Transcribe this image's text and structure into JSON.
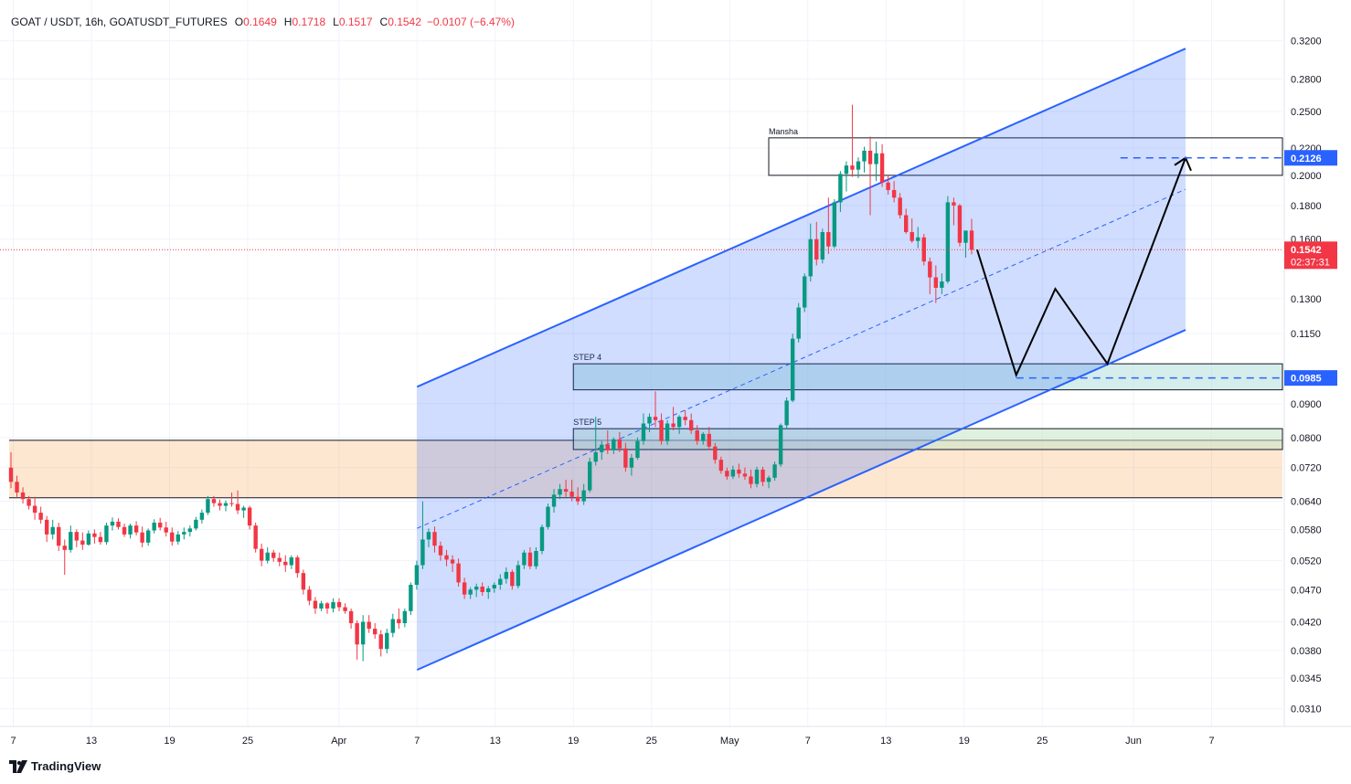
{
  "header": {
    "symbol": "GOAT / USDT, 16h, GOATUSDT_FUTURES",
    "open_label": "O",
    "open": "0.1649",
    "high_label": "H",
    "high": "0.1718",
    "low_label": "L",
    "low": "0.1517",
    "close_label": "C",
    "close": "0.1542",
    "change": "−0.0107 (−6.47%)"
  },
  "brand": {
    "name": "TradingView"
  },
  "colors": {
    "up": "#089981",
    "down": "#f23645",
    "channel": "#2962ff",
    "channel_fill": "#2962ff",
    "demand_zone": "#f57c00",
    "label_blue": "#2962ff"
  },
  "chart_data": {
    "type": "candlestick",
    "y_axis": {
      "scale": "log",
      "ticks": [
        "0.3200",
        "0.2800",
        "0.2500",
        "0.2200",
        "0.2000",
        "0.1800",
        "0.1600",
        "0.1300",
        "0.1150",
        "0.0900",
        "0.0800",
        "0.0720",
        "0.0640",
        "0.0580",
        "0.0520",
        "0.0470",
        "0.0420",
        "0.0380",
        "0.0345",
        "0.0310"
      ]
    },
    "x_axis": {
      "ticks": [
        "7",
        "13",
        "19",
        "25",
        "Apr",
        "7",
        "13",
        "19",
        "25",
        "May",
        "7",
        "13",
        "19",
        "25",
        "Jun",
        "7"
      ]
    },
    "price_labels": [
      {
        "value": "0.2126",
        "kind": "target"
      },
      {
        "value": "0.1542",
        "kind": "last",
        "countdown": "02:37:31"
      },
      {
        "value": "0.0985",
        "kind": "entry"
      }
    ],
    "zones": [
      {
        "name": "Mansha",
        "top": 0.228,
        "bottom": 0.2
      },
      {
        "name": "STEP 4",
        "top": 0.1035,
        "bottom": 0.0945
      },
      {
        "name": "STEP 5",
        "top": 0.0825,
        "bottom": 0.0767
      },
      {
        "name": "",
        "top": 0.0792,
        "bottom": 0.0648
      }
    ],
    "channel": {
      "lower": [
        {
          "date": "Apr 7",
          "value": 0.0355
        },
        {
          "date": "Jun 5",
          "value": 0.1165
        }
      ],
      "upper": [
        {
          "date": "Apr 7",
          "value": 0.0955
        },
        {
          "date": "Jun 5",
          "value": 0.3115
        }
      ]
    },
    "projection": [
      {
        "date": "May 20",
        "value": 0.1542
      },
      {
        "date": "May 23",
        "value": 0.0995
      },
      {
        "date": "May 26",
        "value": 0.1345
      },
      {
        "date": "May 30",
        "value": 0.1035
      },
      {
        "date": "Jun 5",
        "value": 0.2126
      }
    ],
    "candles": [
      [
        0.072,
        0.076,
        0.067,
        0.0685
      ],
      [
        0.0685,
        0.07,
        0.065,
        0.066
      ],
      [
        0.066,
        0.0672,
        0.0635,
        0.0645
      ],
      [
        0.0645,
        0.0652,
        0.0622,
        0.063
      ],
      [
        0.063,
        0.065,
        0.06,
        0.0615
      ],
      [
        0.0615,
        0.0628,
        0.0592,
        0.06
      ],
      [
        0.06,
        0.0608,
        0.0555,
        0.057
      ],
      [
        0.057,
        0.06,
        0.056,
        0.0585
      ],
      [
        0.0585,
        0.0594,
        0.0538,
        0.0548
      ],
      [
        0.0548,
        0.056,
        0.0495,
        0.054
      ],
      [
        0.054,
        0.0588,
        0.0535,
        0.0575
      ],
      [
        0.0575,
        0.058,
        0.0545,
        0.0558
      ],
      [
        0.0558,
        0.0574,
        0.054,
        0.055
      ],
      [
        0.055,
        0.0578,
        0.0548,
        0.0572
      ],
      [
        0.0572,
        0.058,
        0.0552,
        0.0565
      ],
      [
        0.0565,
        0.0575,
        0.055,
        0.0555
      ],
      [
        0.0555,
        0.0594,
        0.055,
        0.0588
      ],
      [
        0.0588,
        0.0605,
        0.0578,
        0.0596
      ],
      [
        0.0596,
        0.0603,
        0.058,
        0.0585
      ],
      [
        0.0585,
        0.0592,
        0.0565,
        0.057
      ],
      [
        0.057,
        0.0592,
        0.0562,
        0.0588
      ],
      [
        0.0588,
        0.0597,
        0.0568,
        0.0574
      ],
      [
        0.0574,
        0.0586,
        0.0545,
        0.0554
      ],
      [
        0.0554,
        0.0582,
        0.0548,
        0.0578
      ],
      [
        0.0578,
        0.0601,
        0.0572,
        0.0594
      ],
      [
        0.0594,
        0.0604,
        0.0578,
        0.0584
      ],
      [
        0.0584,
        0.0596,
        0.0566,
        0.0574
      ],
      [
        0.0574,
        0.0584,
        0.0548,
        0.0556
      ],
      [
        0.0556,
        0.0577,
        0.055,
        0.057
      ],
      [
        0.057,
        0.0584,
        0.056,
        0.0575
      ],
      [
        0.0575,
        0.0588,
        0.0566,
        0.0582
      ],
      [
        0.0582,
        0.0606,
        0.0578,
        0.06
      ],
      [
        0.06,
        0.0622,
        0.0592,
        0.0615
      ],
      [
        0.0615,
        0.0652,
        0.061,
        0.0645
      ],
      [
        0.0645,
        0.0652,
        0.0628,
        0.0636
      ],
      [
        0.0636,
        0.0644,
        0.062,
        0.063
      ],
      [
        0.063,
        0.0642,
        0.0618,
        0.0636
      ],
      [
        0.0636,
        0.066,
        0.0628,
        0.0634
      ],
      [
        0.0634,
        0.0665,
        0.0612,
        0.062
      ],
      [
        0.062,
        0.063,
        0.0604,
        0.0626
      ],
      [
        0.0626,
        0.063,
        0.058,
        0.0588
      ],
      [
        0.0588,
        0.0594,
        0.0535,
        0.0542
      ],
      [
        0.0542,
        0.0552,
        0.051,
        0.052
      ],
      [
        0.052,
        0.0545,
        0.0515,
        0.0535
      ],
      [
        0.0535,
        0.054,
        0.0518,
        0.0525
      ],
      [
        0.0525,
        0.0535,
        0.051,
        0.0518
      ],
      [
        0.0518,
        0.053,
        0.05,
        0.0512
      ],
      [
        0.0512,
        0.053,
        0.0505,
        0.0526
      ],
      [
        0.0526,
        0.053,
        0.049,
        0.0498
      ],
      [
        0.0498,
        0.0504,
        0.0462,
        0.047
      ],
      [
        0.047,
        0.0476,
        0.0445,
        0.0452
      ],
      [
        0.0452,
        0.0458,
        0.0432,
        0.044
      ],
      [
        0.044,
        0.0452,
        0.0436,
        0.0448
      ],
      [
        0.0448,
        0.045,
        0.0432,
        0.044
      ],
      [
        0.044,
        0.0456,
        0.0434,
        0.045
      ],
      [
        0.045,
        0.0456,
        0.0436,
        0.0442
      ],
      [
        0.0442,
        0.0448,
        0.0432,
        0.0436
      ],
      [
        0.0436,
        0.044,
        0.041,
        0.0418
      ],
      [
        0.0418,
        0.0422,
        0.0368,
        0.0388
      ],
      [
        0.0388,
        0.043,
        0.0366,
        0.042
      ],
      [
        0.042,
        0.043,
        0.0404,
        0.041
      ],
      [
        0.041,
        0.0418,
        0.0396,
        0.0402
      ],
      [
        0.0402,
        0.0408,
        0.0372,
        0.0382
      ],
      [
        0.0382,
        0.041,
        0.0376,
        0.0404
      ],
      [
        0.0404,
        0.0432,
        0.0398,
        0.0424
      ],
      [
        0.0424,
        0.044,
        0.041,
        0.0418
      ],
      [
        0.0418,
        0.044,
        0.0412,
        0.0436
      ],
      [
        0.0436,
        0.0482,
        0.043,
        0.0478
      ],
      [
        0.0478,
        0.052,
        0.047,
        0.0512
      ],
      [
        0.0512,
        0.064,
        0.0505,
        0.056
      ],
      [
        0.056,
        0.0582,
        0.0545,
        0.0575
      ],
      [
        0.0575,
        0.0586,
        0.0535,
        0.0548
      ],
      [
        0.0548,
        0.0556,
        0.052,
        0.053
      ],
      [
        0.053,
        0.054,
        0.051,
        0.0522
      ],
      [
        0.0522,
        0.053,
        0.05,
        0.0515
      ],
      [
        0.0515,
        0.0524,
        0.0475,
        0.0482
      ],
      [
        0.0482,
        0.049,
        0.0455,
        0.0462
      ],
      [
        0.0462,
        0.0474,
        0.0455,
        0.047
      ],
      [
        0.047,
        0.048,
        0.0458,
        0.0475
      ],
      [
        0.0475,
        0.0482,
        0.046,
        0.0466
      ],
      [
        0.0466,
        0.0476,
        0.0455,
        0.0472
      ],
      [
        0.0472,
        0.0482,
        0.0465,
        0.0478
      ],
      [
        0.0478,
        0.0496,
        0.047,
        0.0488
      ],
      [
        0.0488,
        0.0508,
        0.048,
        0.05
      ],
      [
        0.05,
        0.0504,
        0.047,
        0.0476
      ],
      [
        0.0476,
        0.052,
        0.0472,
        0.0512
      ],
      [
        0.0512,
        0.054,
        0.0505,
        0.0535
      ],
      [
        0.0535,
        0.0545,
        0.0505,
        0.051
      ],
      [
        0.051,
        0.0545,
        0.0505,
        0.0538
      ],
      [
        0.0538,
        0.059,
        0.0532,
        0.0585
      ],
      [
        0.0585,
        0.0635,
        0.058,
        0.0628
      ],
      [
        0.0628,
        0.0668,
        0.0615,
        0.0655
      ],
      [
        0.0655,
        0.068,
        0.0645,
        0.0668
      ],
      [
        0.0668,
        0.069,
        0.065,
        0.0662
      ],
      [
        0.0662,
        0.069,
        0.064,
        0.065
      ],
      [
        0.065,
        0.0672,
        0.0632,
        0.064
      ],
      [
        0.064,
        0.068,
        0.0632,
        0.0665
      ],
      [
        0.0665,
        0.0745,
        0.066,
        0.0735
      ],
      [
        0.0735,
        0.086,
        0.0725,
        0.076
      ],
      [
        0.076,
        0.079,
        0.074,
        0.078
      ],
      [
        0.078,
        0.082,
        0.0755,
        0.0765
      ],
      [
        0.0765,
        0.08,
        0.0755,
        0.0795
      ],
      [
        0.0795,
        0.0815,
        0.076,
        0.077
      ],
      [
        0.077,
        0.0785,
        0.071,
        0.072
      ],
      [
        0.072,
        0.0755,
        0.07,
        0.0745
      ],
      [
        0.0745,
        0.08,
        0.074,
        0.079
      ],
      [
        0.079,
        0.087,
        0.078,
        0.084
      ],
      [
        0.084,
        0.087,
        0.0815,
        0.086
      ],
      [
        0.086,
        0.094,
        0.083,
        0.085
      ],
      [
        0.085,
        0.087,
        0.078,
        0.079
      ],
      [
        0.079,
        0.085,
        0.078,
        0.084
      ],
      [
        0.084,
        0.089,
        0.082,
        0.083
      ],
      [
        0.083,
        0.0865,
        0.081,
        0.086
      ],
      [
        0.086,
        0.088,
        0.0835,
        0.085
      ],
      [
        0.085,
        0.087,
        0.081,
        0.082
      ],
      [
        0.082,
        0.0835,
        0.078,
        0.079
      ],
      [
        0.079,
        0.0815,
        0.078,
        0.081
      ],
      [
        0.081,
        0.083,
        0.0765,
        0.0775
      ],
      [
        0.0775,
        0.0785,
        0.073,
        0.074
      ],
      [
        0.074,
        0.0748,
        0.0705,
        0.0712
      ],
      [
        0.0712,
        0.072,
        0.069,
        0.0698
      ],
      [
        0.0698,
        0.0725,
        0.0692,
        0.0715
      ],
      [
        0.0715,
        0.073,
        0.0695,
        0.0705
      ],
      [
        0.0705,
        0.072,
        0.069,
        0.0698
      ],
      [
        0.0698,
        0.0715,
        0.067,
        0.068
      ],
      [
        0.068,
        0.0722,
        0.0672,
        0.0715
      ],
      [
        0.0715,
        0.0722,
        0.0675,
        0.0685
      ],
      [
        0.0685,
        0.07,
        0.067,
        0.0695
      ],
      [
        0.0695,
        0.0735,
        0.0688,
        0.0728
      ],
      [
        0.0728,
        0.084,
        0.0722,
        0.0835
      ],
      [
        0.0835,
        0.092,
        0.0825,
        0.091
      ],
      [
        0.091,
        0.115,
        0.0905,
        0.113
      ],
      [
        0.113,
        0.128,
        0.1115,
        0.126
      ],
      [
        0.126,
        0.142,
        0.124,
        0.1405
      ],
      [
        0.1405,
        0.169,
        0.138,
        0.16
      ],
      [
        0.16,
        0.17,
        0.146,
        0.149
      ],
      [
        0.149,
        0.166,
        0.147,
        0.164
      ],
      [
        0.164,
        0.185,
        0.152,
        0.156
      ],
      [
        0.156,
        0.184,
        0.155,
        0.182
      ],
      [
        0.182,
        0.203,
        0.176,
        0.201
      ],
      [
        0.201,
        0.21,
        0.189,
        0.207
      ],
      [
        0.207,
        0.256,
        0.199,
        0.204
      ],
      [
        0.204,
        0.213,
        0.198,
        0.21
      ],
      [
        0.21,
        0.221,
        0.202,
        0.218
      ],
      [
        0.218,
        0.229,
        0.174,
        0.208
      ],
      [
        0.208,
        0.225,
        0.196,
        0.216
      ],
      [
        0.216,
        0.223,
        0.192,
        0.195
      ],
      [
        0.195,
        0.2,
        0.187,
        0.19
      ],
      [
        0.19,
        0.196,
        0.182,
        0.185
      ],
      [
        0.185,
        0.188,
        0.172,
        0.174
      ],
      [
        0.174,
        0.178,
        0.163,
        0.164
      ],
      [
        0.164,
        0.172,
        0.158,
        0.159
      ],
      [
        0.159,
        0.167,
        0.155,
        0.161
      ],
      [
        0.161,
        0.163,
        0.146,
        0.148
      ],
      [
        0.148,
        0.15,
        0.132,
        0.14
      ],
      [
        0.14,
        0.146,
        0.128,
        0.135
      ],
      [
        0.135,
        0.142,
        0.132,
        0.138
      ],
      [
        0.138,
        0.186,
        0.137,
        0.182
      ],
      [
        0.182,
        0.185,
        0.168,
        0.18
      ],
      [
        0.18,
        0.181,
        0.156,
        0.158
      ],
      [
        0.158,
        0.164,
        0.15,
        0.1649
      ],
      [
        0.1649,
        0.1718,
        0.1517,
        0.1542
      ]
    ]
  }
}
